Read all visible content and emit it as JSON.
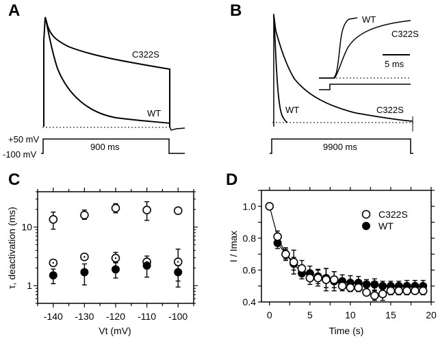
{
  "panels": {
    "A": {
      "label": "A",
      "trace_labels": [
        "C322S",
        "WT"
      ],
      "voltage_high": "+50 mV",
      "voltage_low": "-100 mV",
      "duration": "900 ms"
    },
    "B": {
      "label": "B",
      "trace_labels": [
        "WT",
        "C322S"
      ],
      "inset_labels": [
        "WT",
        "C322S"
      ],
      "scale_bar": "5 ms",
      "duration": "9900 ms"
    },
    "C": {
      "label": "C"
    },
    "D": {
      "label": "D"
    }
  },
  "chart_data": [
    {
      "panel": "C",
      "type": "scatter",
      "title": "",
      "xlabel": "Vt (mV)",
      "ylabel": "τ, deactivation (ms)",
      "yscale": "log",
      "xlim": [
        -145,
        -95
      ],
      "ylim": [
        0.5,
        40
      ],
      "x_ticks": [
        -140,
        -130,
        -120,
        -110,
        -100
      ],
      "x_tick_labels": [
        "-140",
        "-130",
        "-120",
        "-110",
        "-100"
      ],
      "y_ticks": [
        1,
        10
      ],
      "y_tick_labels": [
        "1",
        "10"
      ],
      "grid": false,
      "series": [
        {
          "name": "C322S slow (open circle)",
          "marker": "open-circle",
          "x": [
            -140,
            -130,
            -120,
            -110,
            -100
          ],
          "y": [
            13.5,
            16,
            21,
            19.5,
            19
          ],
          "err_low": [
            9.2,
            13.5,
            17.5,
            13,
            17.5
          ],
          "err_high": [
            18,
            19.5,
            25,
            27,
            20.5
          ]
        },
        {
          "name": "C322S fast (dotted circle)",
          "marker": "dotted-circle",
          "x": [
            -140,
            -130,
            -120,
            -110,
            -100
          ],
          "y": [
            2.45,
            3.1,
            2.95,
            2.55,
            2.55
          ],
          "err_low": [
            2.45,
            3.1,
            2.5,
            2.2,
            1.2
          ],
          "err_high": [
            2.45,
            3.1,
            3.7,
            3.2,
            4.2
          ]
        },
        {
          "name": "WT (filled circle)",
          "marker": "filled-circle",
          "x": [
            -140,
            -130,
            -120,
            -110,
            -100
          ],
          "y": [
            1.5,
            1.7,
            1.9,
            2.2,
            1.7
          ],
          "err_low": [
            1.08,
            1.03,
            1.35,
            1.4,
            0.95
          ],
          "err_high": [
            1.92,
            2.35,
            2.45,
            2.9,
            2.2
          ]
        }
      ]
    },
    {
      "panel": "D",
      "type": "line",
      "title": "",
      "xlabel": "Time (s)",
      "ylabel": "I / Imax",
      "xlim": [
        -1,
        20
      ],
      "ylim": [
        0.4,
        1.1
      ],
      "x_ticks": [
        0,
        5,
        10,
        15,
        20
      ],
      "x_tick_labels": [
        "0",
        "5",
        "10",
        "15",
        "20"
      ],
      "y_ticks": [
        0.4,
        0.6,
        0.8,
        1.0
      ],
      "y_tick_labels": [
        "0.4",
        "0.6",
        "0.8",
        "1.0"
      ],
      "grid": false,
      "legend": {
        "position": "top-right",
        "entries": [
          "C322S",
          "WT"
        ]
      },
      "series": [
        {
          "name": "C322S",
          "marker": "open-circle",
          "x": [
            0,
            1,
            2,
            3,
            4,
            5,
            6,
            7,
            8,
            9,
            10,
            11,
            12,
            13,
            14,
            15,
            16,
            17,
            18,
            19
          ],
          "y": [
            1.0,
            0.81,
            0.7,
            0.65,
            0.61,
            0.55,
            0.55,
            0.54,
            0.54,
            0.5,
            0.49,
            0.49,
            0.46,
            0.44,
            0.45,
            0.47,
            0.47,
            0.47,
            0.47,
            0.47
          ],
          "err": [
            0,
            0.035,
            0.03,
            0.075,
            0.05,
            0.04,
            0.05,
            0.07,
            0.05,
            0.03,
            0.025,
            0.025,
            0.02,
            0.03,
            0.04,
            0.025,
            0.025,
            0.025,
            0.02,
            0.025
          ]
        },
        {
          "name": "WT",
          "marker": "filled-circle",
          "x": [
            1,
            2,
            3,
            4,
            5,
            6,
            7,
            8,
            9,
            10,
            11,
            12,
            13,
            14,
            15,
            16,
            17,
            18,
            19
          ],
          "y": [
            0.77,
            0.7,
            0.64,
            0.58,
            0.58,
            0.56,
            0.55,
            0.53,
            0.53,
            0.52,
            0.52,
            0.51,
            0.51,
            0.5,
            0.5,
            0.5,
            0.5,
            0.5,
            0.5
          ],
          "err": [
            0.035,
            0.04,
            0.04,
            0.035,
            0.045,
            0.045,
            0.06,
            0.06,
            0.04,
            0.045,
            0.04,
            0.03,
            0.035,
            0.03,
            0.03,
            0.03,
            0.035,
            0.035,
            0.035
          ]
        }
      ]
    }
  ]
}
